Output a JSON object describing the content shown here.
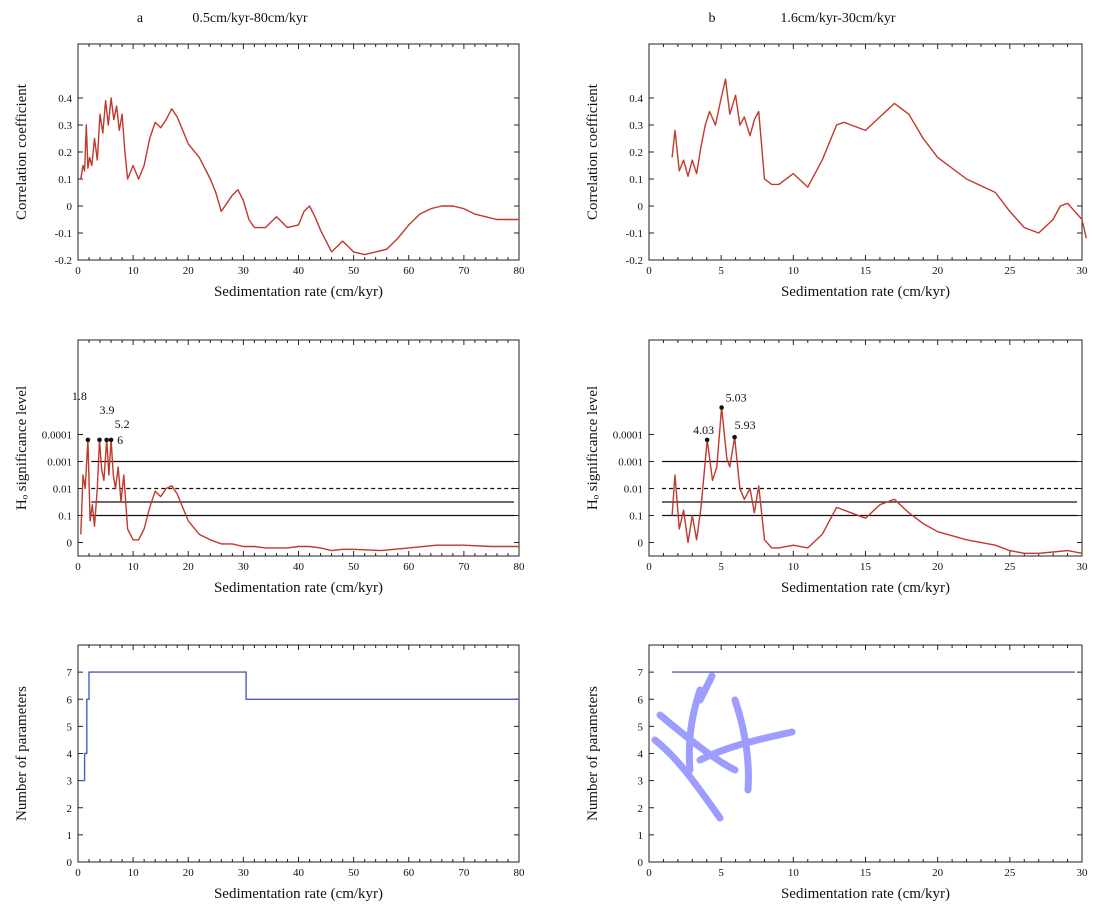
{
  "colors": {
    "series_red": "#c0392b",
    "series_blue": "#4a5fc1",
    "axes": "#222222",
    "watermark": "#8c8cff"
  },
  "chart_data": [
    {
      "id": "a-corr",
      "panel": "a",
      "title": "0.5cm/kyr-80cm/kyr",
      "type": "line",
      "xlabel": "Sedimentation rate (cm/kyr)",
      "ylabel": "Correlation coefficient",
      "xlim": [
        0,
        80
      ],
      "ylim": [
        -0.2,
        0.6
      ],
      "xticks": [
        0,
        10,
        20,
        30,
        40,
        50,
        60,
        70,
        80
      ],
      "yticks": [
        -0.2,
        -0.1,
        0,
        0.1,
        0.2,
        0.3,
        0.4
      ],
      "ytick_labels": [
        "-0.2",
        "-0.1",
        "0",
        "0.1",
        "0.2",
        "0.3",
        "0.4"
      ],
      "series": [
        {
          "color": "#c0392b",
          "x": [
            0.5,
            0.9,
            1.2,
            1.5,
            1.8,
            2.1,
            2.5,
            3,
            3.5,
            4,
            4.5,
            5,
            5.5,
            6,
            6.5,
            7,
            7.5,
            8,
            8.5,
            9,
            10,
            11,
            12,
            13,
            14,
            15,
            16,
            17,
            18,
            20,
            22,
            24,
            25,
            26,
            27,
            28,
            29,
            30,
            31,
            32,
            34,
            36,
            38,
            40,
            41,
            42,
            43,
            44,
            46,
            48,
            50,
            52,
            54,
            56,
            58,
            60,
            62,
            64,
            66,
            68,
            70,
            72,
            74,
            76,
            78,
            80
          ],
          "y": [
            0.1,
            0.15,
            0.13,
            0.3,
            0.14,
            0.18,
            0.15,
            0.25,
            0.17,
            0.34,
            0.27,
            0.39,
            0.3,
            0.4,
            0.32,
            0.37,
            0.28,
            0.34,
            0.2,
            0.1,
            0.15,
            0.1,
            0.15,
            0.25,
            0.31,
            0.29,
            0.32,
            0.36,
            0.33,
            0.23,
            0.18,
            0.1,
            0.05,
            -0.02,
            0.01,
            0.04,
            0.06,
            0.02,
            -0.05,
            -0.08,
            -0.08,
            -0.04,
            -0.08,
            -0.07,
            -0.02,
            0.0,
            -0.04,
            -0.09,
            -0.17,
            -0.13,
            -0.17,
            -0.18,
            -0.17,
            -0.16,
            -0.12,
            -0.07,
            -0.03,
            -0.01,
            0.0,
            0.0,
            -0.01,
            -0.03,
            -0.04,
            -0.05,
            -0.05,
            -0.05
          ]
        }
      ]
    },
    {
      "id": "a-sig",
      "panel": "a",
      "type": "line",
      "xlabel": "Sedimentation rate (cm/kyr)",
      "ylabel": "Hₒ significance level",
      "xlim": [
        0,
        80
      ],
      "ylim": [
        0,
        8
      ],
      "xticks": [
        0,
        10,
        20,
        30,
        40,
        50,
        60,
        70,
        80
      ],
      "yticks": [
        0.5,
        1.5,
        2.5,
        3.5,
        4.5
      ],
      "ytick_labels": [
        "0",
        "0.1",
        "0.01",
        "0.001",
        "0.0001"
      ],
      "reference_lines": [
        {
          "y": 1.5,
          "style": "solid"
        },
        {
          "y": 2.0,
          "style": "solid"
        },
        {
          "y": 2.5,
          "style": "dashed"
        },
        {
          "y": 3.5,
          "style": "solid"
        }
      ],
      "series": [
        {
          "color": "#c0392b",
          "x": [
            0.5,
            0.9,
            1.3,
            1.8,
            2.2,
            2.6,
            3,
            3.5,
            3.9,
            4.3,
            4.7,
            5.2,
            5.6,
            6,
            6.4,
            6.8,
            7.3,
            7.8,
            8.3,
            9,
            10,
            11,
            12,
            13,
            14,
            15,
            16,
            17,
            18,
            19,
            20,
            22,
            24,
            26,
            28,
            30,
            32,
            34,
            36,
            38,
            40,
            42,
            44,
            46,
            48,
            50,
            55,
            60,
            65,
            70,
            75,
            80
          ],
          "y": [
            0.8,
            3.0,
            2.5,
            4.3,
            1.3,
            1.9,
            1.1,
            2.5,
            4.3,
            3.2,
            2.8,
            4.3,
            3.0,
            4.3,
            3.0,
            2.5,
            3.3,
            2.0,
            3.0,
            1.0,
            0.6,
            0.6,
            1.0,
            1.8,
            2.4,
            2.2,
            2.5,
            2.6,
            2.3,
            1.8,
            1.3,
            0.8,
            0.6,
            0.45,
            0.45,
            0.35,
            0.35,
            0.3,
            0.3,
            0.3,
            0.35,
            0.35,
            0.3,
            0.2,
            0.25,
            0.25,
            0.2,
            0.3,
            0.4,
            0.4,
            0.35,
            0.35
          ]
        }
      ],
      "annotations": [
        {
          "x": 1.8,
          "y": 4.3,
          "text": "1.8"
        },
        {
          "x": 3.9,
          "y": 4.3,
          "text": "3.9"
        },
        {
          "x": 5.2,
          "y": 4.3,
          "text": "5.2"
        },
        {
          "x": 6,
          "y": 4.3,
          "text": "6"
        }
      ]
    },
    {
      "id": "a-params",
      "panel": "a",
      "type": "line",
      "xlabel": "Sedimentation rate (cm/kyr)",
      "ylabel": "Number of parameters",
      "xlim": [
        0,
        80
      ],
      "ylim": [
        0,
        8
      ],
      "xticks": [
        0,
        10,
        20,
        30,
        40,
        50,
        60,
        70,
        80
      ],
      "yticks": [
        0,
        1,
        2,
        3,
        4,
        5,
        6,
        7
      ],
      "ytick_labels": [
        "0",
        "1",
        "2",
        "3",
        "4",
        "5",
        "6",
        "7"
      ],
      "series": [
        {
          "color": "#4a5fc1",
          "x": [
            0.5,
            1.2,
            1.2,
            1.6,
            1.6,
            2.0,
            2.0,
            30.5,
            30.5,
            80
          ],
          "y": [
            3,
            3,
            4,
            4,
            6,
            6,
            7,
            7,
            6,
            6
          ]
        }
      ]
    },
    {
      "id": "b-corr",
      "panel": "b",
      "title": "1.6cm/kyr-30cm/kyr",
      "type": "line",
      "xlabel": "Sedimentation rate (cm/kyr)",
      "ylabel": "Correlation coefficient",
      "xlim": [
        0,
        30
      ],
      "ylim": [
        -0.2,
        0.6
      ],
      "xticks": [
        0,
        5,
        10,
        15,
        20,
        25,
        30
      ],
      "yticks": [
        -0.2,
        -0.1,
        0,
        0.1,
        0.2,
        0.3,
        0.4
      ],
      "ytick_labels": [
        "-0.2",
        "-0.1",
        "0",
        "0.1",
        "0.2",
        "0.3",
        "0.4"
      ],
      "series": [
        {
          "color": "#c0392b",
          "x": [
            1.6,
            1.8,
            2.1,
            2.4,
            2.7,
            3.0,
            3.3,
            3.6,
            3.9,
            4.2,
            4.6,
            5.0,
            5.3,
            5.6,
            6.0,
            6.3,
            6.6,
            7.0,
            7.3,
            7.6,
            8.0,
            8.5,
            9.0,
            10,
            11,
            12,
            13,
            13.5,
            14,
            15,
            16,
            17,
            18,
            19,
            20,
            22,
            24,
            25,
            26,
            27,
            28,
            28.5,
            29,
            30,
            30.3
          ],
          "y": [
            0.18,
            0.28,
            0.13,
            0.17,
            0.11,
            0.17,
            0.12,
            0.22,
            0.3,
            0.35,
            0.3,
            0.4,
            0.47,
            0.34,
            0.41,
            0.3,
            0.33,
            0.26,
            0.32,
            0.35,
            0.1,
            0.08,
            0.08,
            0.12,
            0.07,
            0.17,
            0.3,
            0.31,
            0.3,
            0.28,
            0.33,
            0.38,
            0.34,
            0.25,
            0.18,
            0.1,
            0.05,
            -0.02,
            -0.08,
            -0.1,
            -0.05,
            0.0,
            0.01,
            -0.05,
            -0.12
          ]
        }
      ]
    },
    {
      "id": "b-sig",
      "panel": "b",
      "type": "line",
      "xlabel": "Sedimentation rate (cm/kyr)",
      "ylabel": "Hₒ significance level",
      "xlim": [
        0,
        30
      ],
      "ylim": [
        0,
        8
      ],
      "xticks": [
        0,
        5,
        10,
        15,
        20,
        25,
        30
      ],
      "yticks": [
        0.5,
        1.5,
        2.5,
        3.5,
        4.5
      ],
      "ytick_labels": [
        "0",
        "0.1",
        "0.01",
        "0.001",
        "0.0001"
      ],
      "reference_lines": [
        {
          "y": 1.5,
          "style": "solid"
        },
        {
          "y": 2.0,
          "style": "solid"
        },
        {
          "y": 2.5,
          "style": "dashed"
        },
        {
          "y": 3.5,
          "style": "solid"
        }
      ],
      "series": [
        {
          "color": "#c0392b",
          "x": [
            1.6,
            1.8,
            2.1,
            2.4,
            2.7,
            3.0,
            3.3,
            3.6,
            4.03,
            4.4,
            4.7,
            5.03,
            5.4,
            5.6,
            5.93,
            6.3,
            6.6,
            7.0,
            7.3,
            7.6,
            8.0,
            8.5,
            9.0,
            10,
            11,
            12,
            13,
            14,
            15,
            16,
            17,
            18,
            19,
            20,
            22,
            24,
            25,
            26,
            27,
            28,
            29,
            30
          ],
          "y": [
            1.5,
            3.0,
            1.0,
            1.7,
            0.5,
            1.5,
            0.6,
            1.8,
            4.3,
            2.8,
            3.3,
            5.5,
            3.6,
            3.3,
            4.4,
            2.5,
            2.1,
            2.5,
            1.6,
            2.6,
            0.6,
            0.3,
            0.3,
            0.4,
            0.3,
            0.8,
            1.8,
            1.6,
            1.4,
            1.9,
            2.1,
            1.6,
            1.2,
            0.9,
            0.6,
            0.4,
            0.2,
            0.1,
            0.1,
            0.15,
            0.2,
            0.1
          ]
        }
      ],
      "annotations": [
        {
          "x": 4.03,
          "y": 4.3,
          "text": "4.03"
        },
        {
          "x": 5.03,
          "y": 5.5,
          "text": "5.03"
        },
        {
          "x": 5.93,
          "y": 4.4,
          "text": "5.93"
        }
      ]
    },
    {
      "id": "b-params",
      "panel": "b",
      "type": "line",
      "xlabel": "Sedimentation rate (cm/kyr)",
      "ylabel": "Number of parameters",
      "xlim": [
        0,
        30
      ],
      "ylim": [
        0,
        8
      ],
      "xticks": [
        0,
        5,
        10,
        15,
        20,
        25,
        30
      ],
      "yticks": [
        0,
        1,
        2,
        3,
        4,
        5,
        6,
        7
      ],
      "ytick_labels": [
        "0",
        "1",
        "2",
        "3",
        "4",
        "5",
        "6",
        "7"
      ],
      "series": [
        {
          "color": "#4a5fc1",
          "x": [
            1.6,
            29.5
          ],
          "y": [
            7,
            7
          ]
        }
      ]
    }
  ],
  "panel_labels": {
    "a": "a",
    "b": "b"
  }
}
